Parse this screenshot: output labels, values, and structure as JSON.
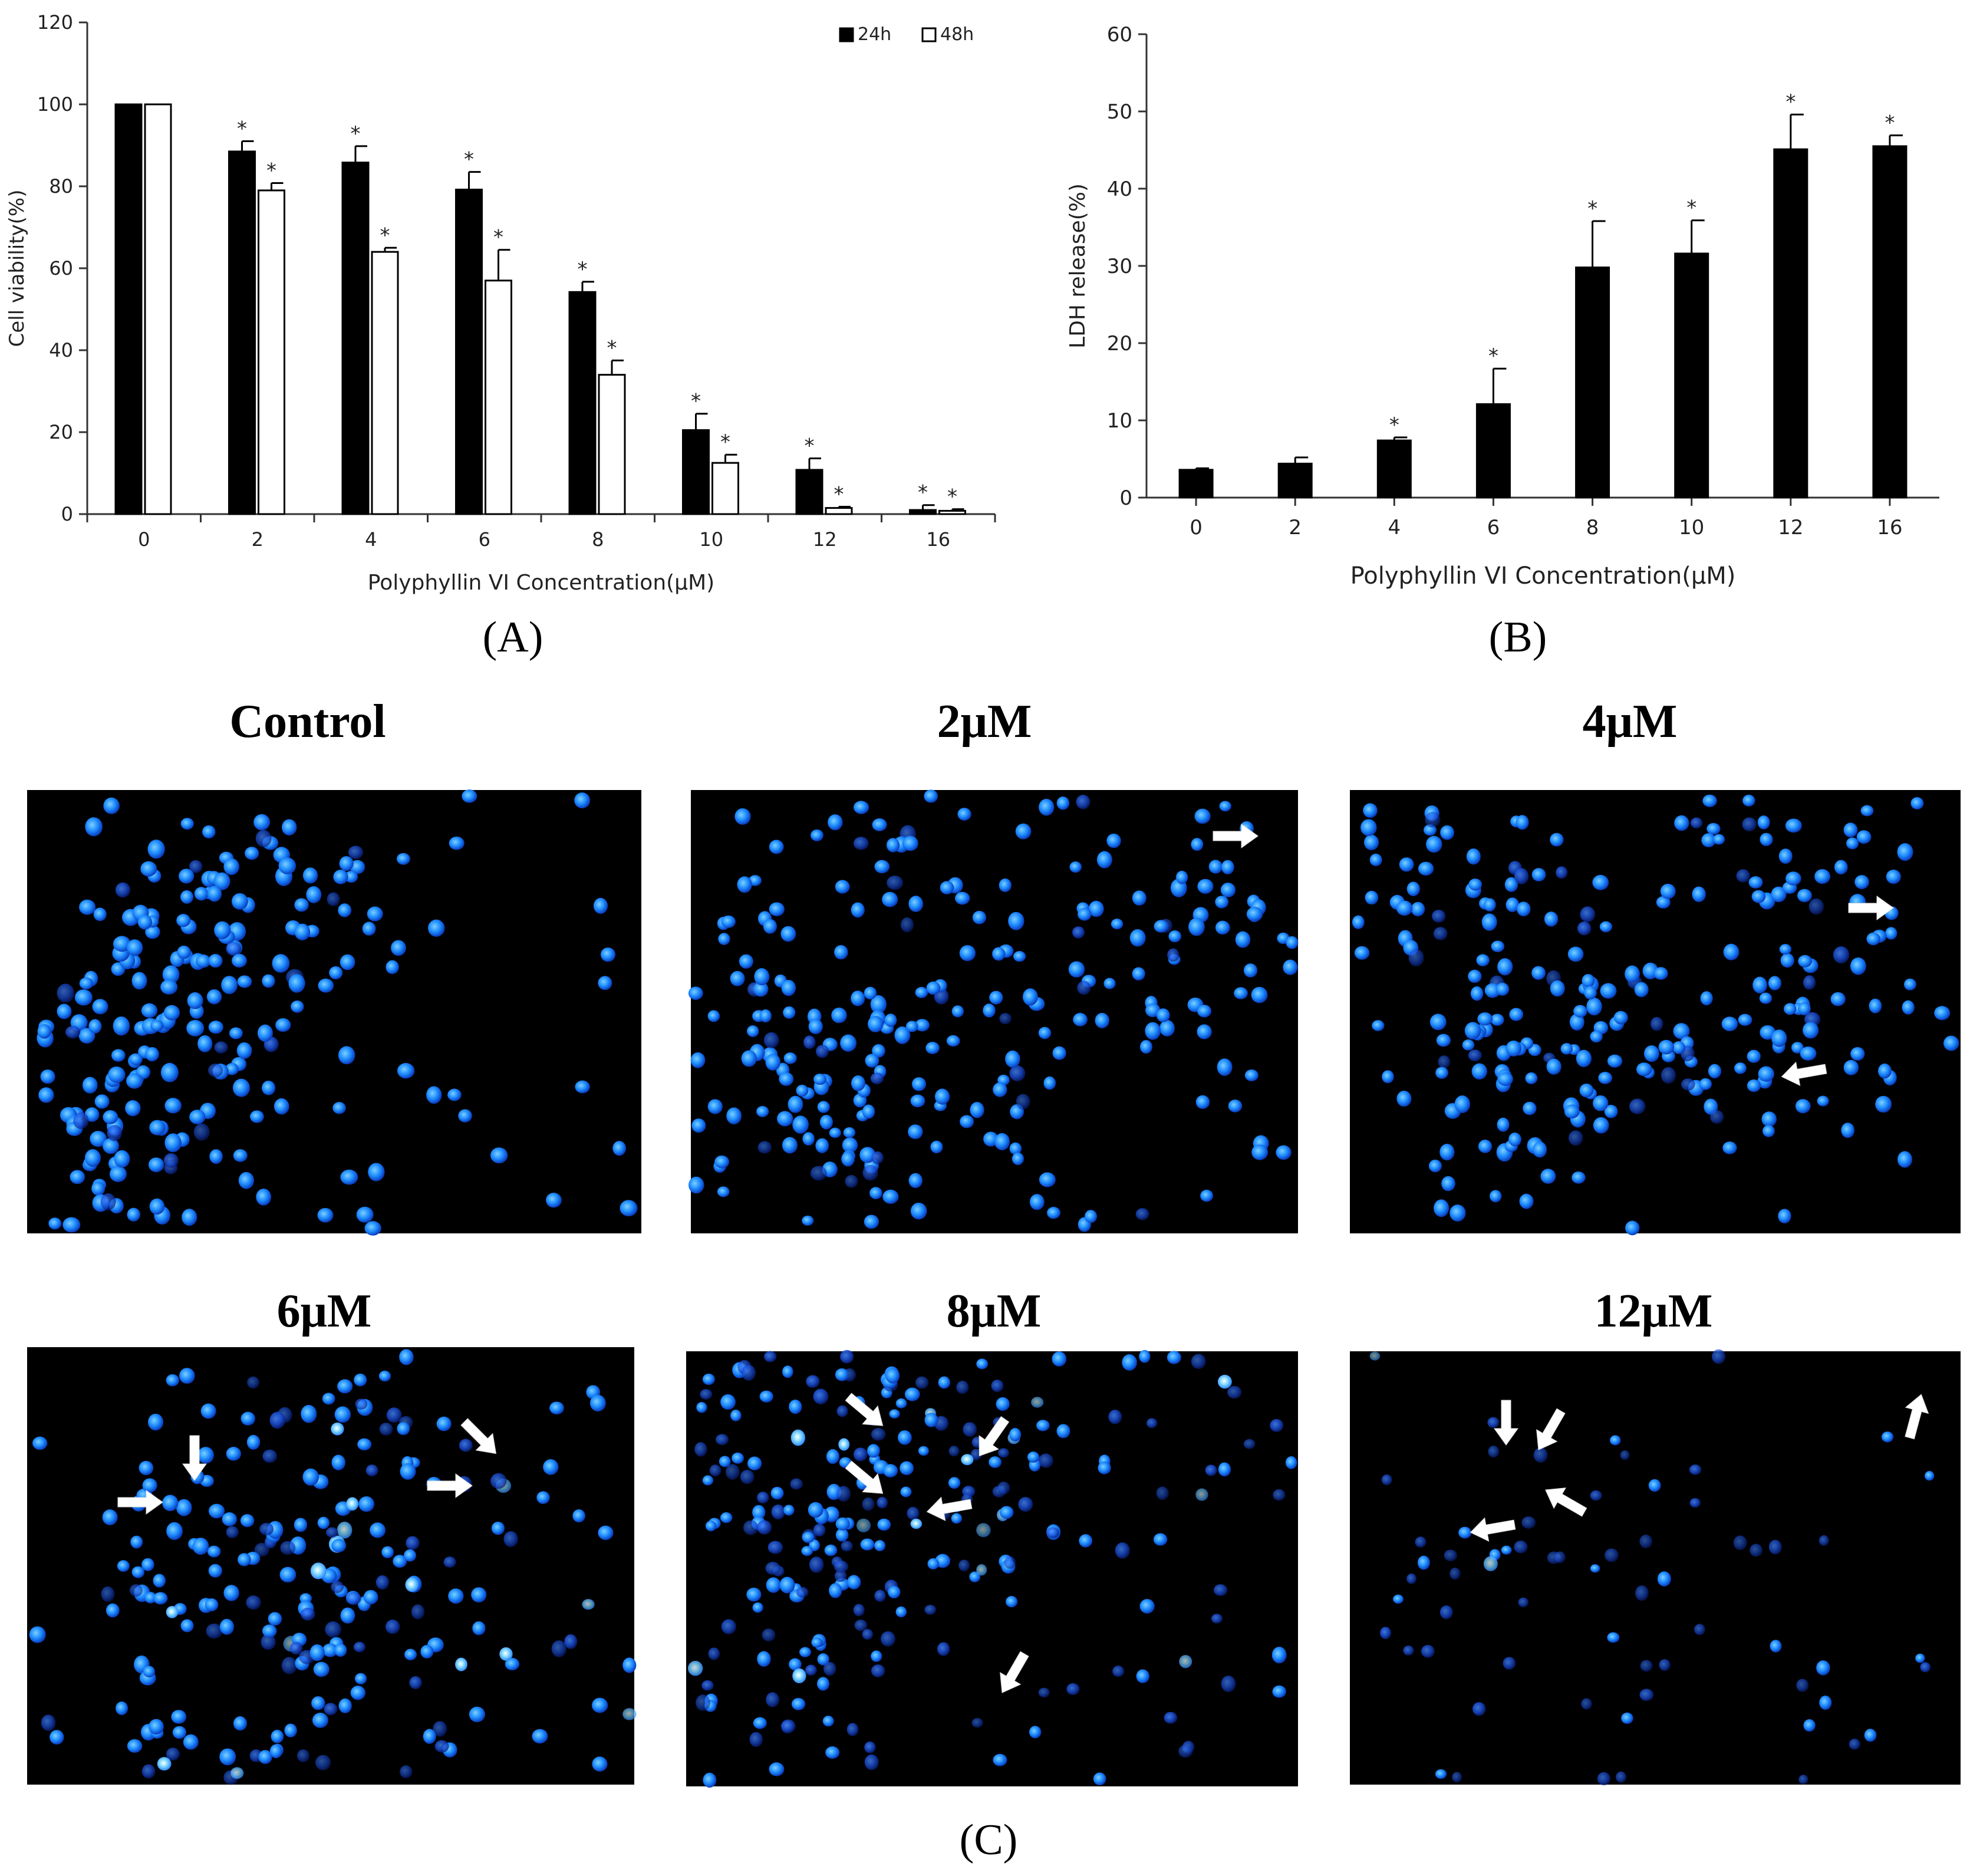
{
  "chart_data": [
    {
      "type": "bar",
      "panel": "A",
      "categories": [
        "0",
        "2",
        "4",
        "6",
        "8",
        "10",
        "12",
        "16"
      ],
      "series": [
        {
          "name": "24h",
          "fill": "#000000",
          "values": [
            100,
            88.5,
            85.8,
            79.2,
            54.2,
            20.5,
            10.8,
            1.0
          ],
          "errors": [
            0,
            2.5,
            4.0,
            4.3,
            2.5,
            4.0,
            2.8,
            1.2
          ],
          "significant": [
            false,
            true,
            true,
            true,
            true,
            true,
            true,
            true
          ]
        },
        {
          "name": "48h",
          "fill": "#ffffff",
          "values": [
            100,
            79.0,
            64.0,
            57.0,
            34.0,
            12.5,
            1.5,
            0.8
          ],
          "errors": [
            0,
            1.8,
            1.0,
            7.5,
            3.5,
            2.0,
            0.3,
            0.4
          ],
          "significant": [
            false,
            true,
            true,
            true,
            true,
            true,
            true,
            true
          ]
        }
      ],
      "xlabel": "Polyphyllin VI Concentration(μM)",
      "ylabel": "Cell viability(%)",
      "ylim": [
        0,
        120
      ],
      "yticks": [
        "0",
        "20",
        "40",
        "60",
        "80",
        "100",
        "120"
      ],
      "legend_position": "top-right",
      "sig_marker": "*"
    },
    {
      "type": "bar",
      "panel": "B",
      "categories": [
        "0",
        "2",
        "4",
        "6",
        "8",
        "10",
        "12",
        "16"
      ],
      "series": [
        {
          "name": "LDH release",
          "fill": "#000000",
          "values": [
            3.6,
            4.4,
            7.4,
            12.1,
            29.8,
            31.6,
            45.1,
            45.5
          ],
          "errors": [
            0.2,
            0.8,
            0.4,
            4.6,
            6.0,
            4.3,
            4.5,
            1.4
          ],
          "significant": [
            false,
            false,
            true,
            true,
            true,
            true,
            true,
            true
          ]
        }
      ],
      "xlabel": "Polyphyllin VI Concentration(μM)",
      "ylabel": "LDH release(%)",
      "ylim": [
        0,
        60
      ],
      "yticks": [
        "0",
        "10",
        "20",
        "30",
        "40",
        "50",
        "60"
      ],
      "sig_marker": "*"
    }
  ],
  "labels": {
    "a": "(A)",
    "b": "(B)",
    "c": "(C)"
  },
  "micrographs": [
    {
      "title": "Control",
      "arrows": []
    },
    {
      "title": "2μM",
      "arrows": [
        {
          "deg": 0
        }
      ]
    },
    {
      "title": "4μM",
      "arrows": [
        {
          "deg": 0
        },
        {
          "deg": 170
        }
      ]
    },
    {
      "title": "6μM",
      "arrows": [
        {
          "deg": 90
        },
        {
          "deg": 0
        },
        {
          "deg": 0
        },
        {
          "deg": 45
        }
      ]
    },
    {
      "title": "8μM",
      "arrows": [
        {
          "deg": 40
        },
        {
          "deg": 125
        },
        {
          "deg": 40
        },
        {
          "deg": 170
        },
        {
          "deg": 120
        }
      ]
    },
    {
      "title": "12μM",
      "arrows": [
        {
          "deg": 90
        },
        {
          "deg": 120
        },
        {
          "deg": 210
        },
        {
          "deg": 170
        },
        {
          "deg": -75
        }
      ]
    }
  ],
  "colors": {
    "nucleus": "#1e8cff",
    "background": "#000000",
    "arrow": "#ffffff"
  }
}
